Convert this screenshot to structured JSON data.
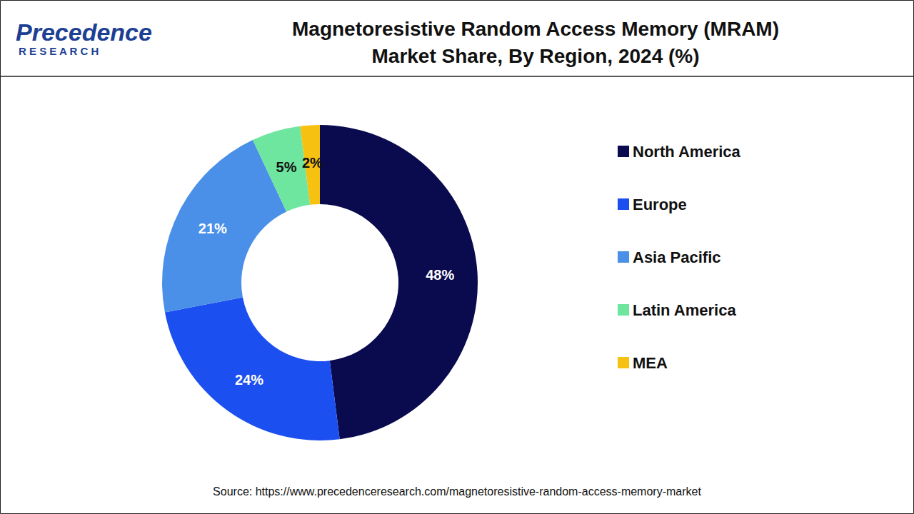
{
  "chart_data": {
    "type": "pie",
    "donut": true,
    "title": "Magnetoresistive Random Access Memory (MRAM)\nMarket Share, By Region, 2024 (%)",
    "categories": [
      "North America",
      "Europe",
      "Asia Pacific",
      "Latin America",
      "MEA"
    ],
    "values": [
      48,
      24,
      21,
      5,
      2
    ],
    "value_labels": [
      "48%",
      "24%",
      "21%",
      "5%",
      "2%"
    ],
    "colors": [
      "#0a0a4e",
      "#1c4ff0",
      "#4a90e8",
      "#6ee6a0",
      "#f7c111"
    ],
    "data_labels": true,
    "legend": "right"
  },
  "header": {
    "logo": "Precedence",
    "logo_sub": "RESEARCH"
  },
  "source": "Source: https://www.precedenceresearch.com/magnetoresistive-random-access-memory-market"
}
